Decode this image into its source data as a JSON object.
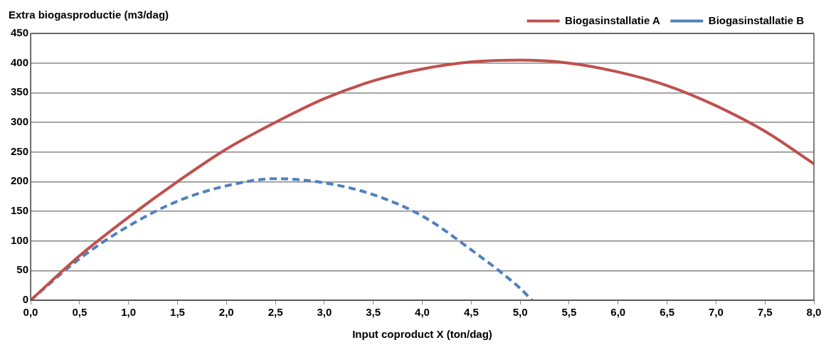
{
  "chart_data": {
    "type": "line",
    "ylabel": "Extra biogasproductie (m3/dag)",
    "xlabel": "Input coproduct X (ton/dag)",
    "series": [
      {
        "name": "Biogasinstallatie A",
        "color": "#c0504d",
        "line_style": "solid",
        "x": [
          0,
          0.5,
          1,
          1.5,
          2,
          2.5,
          3,
          3.5,
          4,
          4.5,
          5,
          5.5,
          6,
          6.5,
          7,
          7.5,
          8
        ],
        "values": [
          0,
          75,
          140,
          200,
          255,
          300,
          340,
          370,
          390,
          402,
          405,
          400,
          385,
          362,
          328,
          285,
          230
        ]
      },
      {
        "name": "Biogasinstallatie B",
        "color": "#4f81bd",
        "line_style": "dashed",
        "x": [
          0,
          0.5,
          1,
          1.5,
          2,
          2.5,
          3,
          3.5,
          4,
          4.5,
          5,
          5.12
        ],
        "values": [
          0,
          70,
          125,
          167,
          193,
          205,
          198,
          178,
          142,
          85,
          20,
          0
        ]
      }
    ],
    "xlim": [
      0,
      8
    ],
    "xticks": [
      {
        "value": 0,
        "label": "0,0"
      },
      {
        "value": 0.5,
        "label": "0,5"
      },
      {
        "value": 1,
        "label": "1,0"
      },
      {
        "value": 1.5,
        "label": "1,5"
      },
      {
        "value": 2,
        "label": "2,0"
      },
      {
        "value": 2.5,
        "label": "2,5"
      },
      {
        "value": 3,
        "label": "3,0"
      },
      {
        "value": 3.5,
        "label": "3,5"
      },
      {
        "value": 4,
        "label": "4,0"
      },
      {
        "value": 4.5,
        "label": "4,5"
      },
      {
        "value": 5,
        "label": "5,0"
      },
      {
        "value": 5.5,
        "label": "5,5"
      },
      {
        "value": 6,
        "label": "6,0"
      },
      {
        "value": 6.5,
        "label": "6,5"
      },
      {
        "value": 7,
        "label": "7,0"
      },
      {
        "value": 7.5,
        "label": "7,5"
      },
      {
        "value": 8,
        "label": "8,0"
      }
    ],
    "ylim": [
      0,
      450
    ],
    "yticks": [
      0,
      50,
      100,
      150,
      200,
      250,
      300,
      350,
      400,
      450
    ],
    "grid": "y",
    "legend": "top right",
    "marker": "none"
  }
}
